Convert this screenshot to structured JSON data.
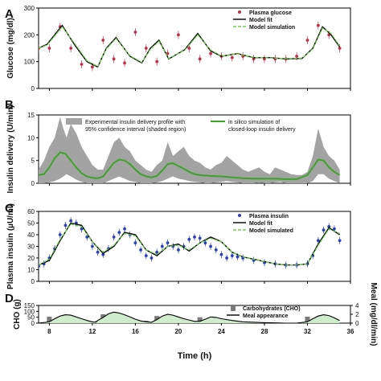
{
  "figure": {
    "xlabel": "Time (h)",
    "x_ticks": [
      8,
      12,
      16,
      20,
      24,
      28,
      32,
      36
    ],
    "xlim": [
      7,
      36
    ]
  },
  "chart_data": [
    {
      "type": "line",
      "panel_label": "A",
      "ylabel": "Glucose (mg/dl)",
      "ylim": [
        0,
        300
      ],
      "y_ticks": [
        0,
        100,
        200,
        300
      ],
      "legend": "top-right",
      "series": [
        {
          "name": "Plasma glucose",
          "kind": "points-errorbars",
          "color": "#c0304a",
          "x": [
            7,
            8,
            9,
            10,
            11,
            12,
            13,
            14,
            15,
            16,
            17,
            18,
            19,
            20,
            21,
            22,
            23,
            24,
            25,
            26,
            27,
            28,
            29,
            30,
            31,
            32,
            33,
            34,
            35
          ],
          "y": [
            150,
            150,
            230,
            150,
            90,
            80,
            180,
            110,
            95,
            210,
            150,
            100,
            130,
            200,
            150,
            110,
            130,
            120,
            115,
            120,
            110,
            110,
            110,
            110,
            120,
            180,
            235,
            200,
            150
          ]
        },
        {
          "name": "Model fit",
          "kind": "line",
          "color": "#000000",
          "x": [
            7,
            7.8,
            9.2,
            10.4,
            11.5,
            12.5,
            13.3,
            14.2,
            15.5,
            16.6,
            17.4,
            18.2,
            19.1,
            20.6,
            21.8,
            23,
            24,
            25.5,
            27,
            28.5,
            30,
            31.5,
            32.5,
            33.4,
            34.2,
            35
          ],
          "y": [
            150,
            165,
            235,
            160,
            100,
            80,
            150,
            190,
            120,
            95,
            150,
            180,
            110,
            145,
            205,
            140,
            120,
            130,
            115,
            115,
            110,
            112,
            150,
            230,
            200,
            155
          ]
        },
        {
          "name": "Model simulation",
          "kind": "dashed",
          "color": "#6ccf4a",
          "x": [
            7,
            7.8,
            9.2,
            10.4,
            11.5,
            12.5,
            13.3,
            14.2,
            15.5,
            16.6,
            17.4,
            18.2,
            19.1,
            20.6,
            21.8,
            23,
            24,
            25.5,
            27,
            28.5,
            30,
            31.5,
            32.5,
            33.4,
            34.2,
            35
          ],
          "y": [
            150,
            162,
            230,
            165,
            103,
            82,
            148,
            186,
            122,
            97,
            146,
            176,
            112,
            143,
            200,
            143,
            121,
            129,
            116,
            114,
            111,
            113,
            148,
            225,
            205,
            158
          ]
        }
      ]
    },
    {
      "type": "area",
      "panel_label": "B",
      "ylabel": "Insulin delivery (U/min)",
      "ylim": [
        0,
        15
      ],
      "y_ticks": [
        0,
        5,
        10,
        15
      ],
      "legend": "top",
      "series": [
        {
          "name": "Experimental insulin delivery profile with 95% confidence interval (shaded region)",
          "kind": "band",
          "color": "#a3a3a3",
          "x": [
            7,
            7.5,
            8,
            8.5,
            9,
            9.3,
            9.6,
            10,
            10.5,
            11,
            11.5,
            12,
            12.5,
            13,
            13.5,
            14,
            14.5,
            15,
            15.5,
            16,
            16.5,
            17,
            17.5,
            18,
            18.5,
            19,
            19.5,
            20,
            20.5,
            21,
            21.5,
            22,
            22.5,
            23,
            23.5,
            24,
            24.5,
            25,
            25.5,
            26,
            26.5,
            27,
            27.5,
            28,
            28.5,
            29,
            29.5,
            30,
            30.5,
            31,
            31.5,
            32,
            32.5,
            33,
            33.5,
            34,
            34.5,
            35
          ],
          "lower": [
            0,
            0,
            0.2,
            0.5,
            1,
            1.5,
            2,
            1.5,
            0.8,
            0.3,
            0,
            0,
            0,
            0,
            0.5,
            1,
            1.5,
            1,
            0.5,
            0.3,
            0,
            0,
            0,
            0.2,
            0.5,
            1,
            1.5,
            1,
            0.8,
            0.5,
            0.3,
            0.2,
            0,
            0,
            0.2,
            0.3,
            0.5,
            0.3,
            0.2,
            0,
            0,
            0,
            0.2,
            0,
            0,
            0.2,
            0.3,
            0,
            0,
            0,
            0,
            0,
            0.5,
            2,
            2,
            1,
            0.5,
            0
          ],
          "upper": [
            3,
            5,
            8,
            10,
            14.5,
            12,
            10,
            13,
            11,
            8,
            6,
            4,
            3,
            3,
            6,
            9,
            10,
            8,
            7,
            5,
            4,
            3,
            2.5,
            4,
            5,
            9,
            6,
            7,
            8,
            6,
            5,
            4.5,
            3.5,
            3,
            4,
            4.5,
            6,
            5,
            4,
            3,
            2.5,
            3,
            3.5,
            2.5,
            2,
            3.5,
            3,
            2.5,
            2,
            1.8,
            1.8,
            2.5,
            6,
            12,
            8,
            6,
            5,
            3
          ]
        },
        {
          "name": "in silico simulation of closed-loop insulin delivery",
          "kind": "line",
          "color": "#3ea329",
          "x": [
            7,
            7.5,
            8,
            8.5,
            9,
            9.5,
            10,
            10.5,
            11,
            11.5,
            12,
            12.5,
            13,
            13.5,
            14,
            14.5,
            15,
            15.5,
            16,
            16.5,
            17,
            17.5,
            18,
            18.5,
            19,
            19.5,
            20,
            20.5,
            21,
            21.5,
            22,
            23,
            24,
            25,
            26,
            27,
            28,
            29,
            30,
            31,
            32,
            32.5,
            33,
            33.5,
            34,
            34.5,
            35
          ],
          "y": [
            1.8,
            2,
            3.5,
            5.5,
            6.8,
            6.5,
            5,
            3.5,
            2.2,
            1.5,
            1.2,
            1.1,
            1.5,
            3,
            4.5,
            5.2,
            5,
            4.2,
            3,
            2,
            1.5,
            1.3,
            1.6,
            2.8,
            4.2,
            4.4,
            3.8,
            3.2,
            2.5,
            2,
            1.8,
            1.6,
            1.5,
            1.3,
            1.1,
            1,
            1,
            1,
            0.9,
            0.9,
            1.8,
            3.5,
            5.2,
            5,
            3.5,
            2.5,
            1.8
          ]
        }
      ]
    },
    {
      "type": "line",
      "panel_label": "C",
      "ylabel": "Plasma insulin (µU/ml)",
      "ylim": [
        0,
        60
      ],
      "y_ticks": [
        0,
        10,
        20,
        30,
        40,
        50,
        60
      ],
      "legend": "top-right",
      "series": [
        {
          "name": "Plasma insulin",
          "kind": "points-errorbars",
          "color": "#2a3fb8",
          "x": [
            7,
            7.5,
            8,
            8.5,
            9,
            9.5,
            10,
            10.5,
            11,
            11.5,
            12,
            12.5,
            13,
            13.5,
            14,
            14.5,
            15,
            15.5,
            16,
            16.5,
            17,
            17.5,
            18,
            18.5,
            19,
            19.5,
            20,
            20.5,
            21,
            21.5,
            22,
            22.5,
            23,
            23.5,
            24,
            24.5,
            25,
            25.5,
            26,
            27,
            28,
            29,
            30,
            31,
            32,
            32.5,
            33,
            33.5,
            34,
            34.5,
            35
          ],
          "y": [
            13,
            15,
            20,
            28,
            40,
            48,
            52,
            50,
            45,
            38,
            30,
            25,
            23,
            28,
            38,
            42,
            45,
            40,
            33,
            27,
            22,
            20,
            25,
            30,
            33,
            30,
            27,
            30,
            36,
            38,
            37,
            33,
            30,
            27,
            23,
            20,
            22,
            21,
            20,
            18,
            16,
            15,
            14,
            14,
            15,
            22,
            35,
            44,
            47,
            45,
            35
          ]
        },
        {
          "name": "Model fit",
          "kind": "line",
          "color": "#000000",
          "x": [
            7,
            8,
            9,
            10,
            11,
            12,
            13,
            14,
            15,
            16,
            17,
            18,
            19,
            20,
            21,
            22,
            23,
            24,
            25,
            26,
            27,
            28,
            29,
            30,
            31,
            32,
            33,
            34,
            35
          ],
          "y": [
            14,
            18,
            35,
            50,
            48,
            34,
            24,
            30,
            42,
            40,
            27,
            22,
            30,
            32,
            26,
            33,
            38,
            34,
            25,
            21,
            19,
            17,
            15,
            14,
            14,
            15,
            32,
            46,
            40
          ]
        },
        {
          "name": "Model simulated",
          "kind": "dashed",
          "color": "#6ccf4a",
          "x": [
            7,
            8,
            9,
            10,
            11,
            12,
            13,
            14,
            15,
            16,
            17,
            18,
            19,
            20,
            21,
            22,
            23,
            24,
            25,
            26,
            27,
            28,
            29,
            30,
            31,
            32,
            33,
            34,
            35
          ],
          "y": [
            14,
            19,
            36,
            49,
            47,
            34,
            25,
            31,
            41,
            39,
            27,
            23,
            30,
            31,
            27,
            33,
            37,
            34,
            25,
            21,
            19,
            17,
            15,
            14,
            14,
            15,
            31,
            45,
            41
          ]
        }
      ]
    },
    {
      "type": "bar",
      "panel_label": "D",
      "ylabel": "CHO (g)",
      "ylabel_right": "Meal (mg/dl/min)",
      "ylim": [
        0,
        150
      ],
      "y_ticks": [
        0,
        50,
        100,
        150
      ],
      "ylim_right": [
        0,
        4
      ],
      "y_ticks_right": [
        0,
        2,
        4
      ],
      "legend": "top-right",
      "series": [
        {
          "name": "Carbohydrates (CHO)",
          "kind": "bars",
          "color": "#7a7a7a",
          "x": [
            8,
            12.5,
            13,
            17,
            18,
            21,
            22,
            32
          ],
          "values": [
            55,
            20,
            75,
            20,
            60,
            20,
            50,
            55
          ]
        },
        {
          "name": "Meal appearance",
          "kind": "line-filled",
          "color": "#000000",
          "fill": "#cfeccf",
          "x": [
            7,
            8,
            8.5,
            9,
            9.5,
            10,
            10.5,
            11,
            11.5,
            12,
            12.3,
            12.5,
            13,
            13.5,
            14,
            14.5,
            15,
            15.5,
            16,
            16.5,
            17,
            17.5,
            18,
            18.5,
            19,
            19.5,
            20,
            20.5,
            21,
            21.5,
            22,
            22.5,
            23,
            23.5,
            24,
            25,
            26,
            27,
            28,
            29,
            30,
            31,
            32,
            32.5,
            33,
            33.5,
            34,
            34.5,
            35
          ],
          "y": [
            0,
            0.3,
            1,
            1.6,
            1.9,
            1.8,
            1.4,
            1,
            0.6,
            0.3,
            0.2,
            0.6,
            1.3,
            2.1,
            2.5,
            2.3,
            1.9,
            1.4,
            0.9,
            0.5,
            0.3,
            0.2,
            0.8,
            1.6,
            2,
            1.8,
            1.4,
            1,
            0.7,
            0.4,
            0.4,
            0.9,
            1.4,
            1.3,
            1,
            0.6,
            0.3,
            0.2,
            0.1,
            0.05,
            0,
            0,
            0.3,
            1,
            1.6,
            1.9,
            1.7,
            1.2,
            0.6
          ]
        }
      ]
    }
  ]
}
